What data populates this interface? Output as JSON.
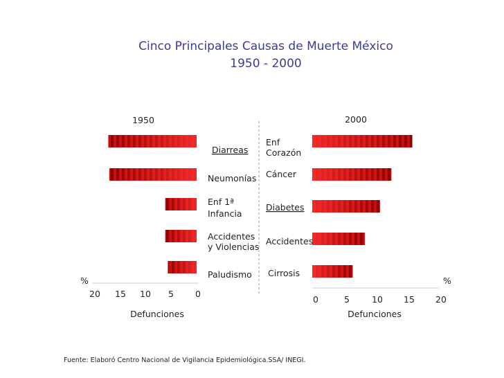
{
  "title_line1": "Cinco Principales Causas de Muerte México",
  "title_line2": "1950 - 2000",
  "source": "Fuente: Elaboró Centro Nacional de Vigilancia Epidemiológica.SSA/ INEGI.",
  "colors": {
    "title": "#3b3b9a",
    "bar_dark": "#8c0000",
    "bar_light": "#ff2a2a",
    "divider": "#6abf5a"
  },
  "chart_data": [
    {
      "type": "bar",
      "title": "1950",
      "orientation": "horizontal",
      "direction": "right-to-left",
      "xlabel": "Defunciones",
      "unit_label": "%",
      "xlim": [
        20,
        0
      ],
      "ticks": [
        "20",
        "15",
        "10",
        "5",
        "0"
      ],
      "categories": [
        {
          "lines": [
            "Diarreas"
          ],
          "underline": true
        },
        {
          "lines": [
            "Neumonías"
          ],
          "underline": false
        },
        {
          "lines": [
            "Enf 1ª",
            "Infancia"
          ],
          "underline": false
        },
        {
          "lines": [
            "Accidentes",
            "y Violencias"
          ],
          "underline": false
        },
        {
          "lines": [
            "Paludismo"
          ],
          "underline": false
        }
      ],
      "values": [
        16.9,
        16.7,
        6.0,
        6.0,
        5.5
      ]
    },
    {
      "type": "bar",
      "title": "2000",
      "orientation": "horizontal",
      "direction": "left-to-right",
      "xlabel": "Defunciones",
      "unit_label": "%",
      "xlim": [
        0,
        20
      ],
      "ticks": [
        "0",
        "5",
        "10",
        "15",
        "20"
      ],
      "categories": [
        {
          "lines": [
            "Enf",
            "Corazón"
          ],
          "underline": false
        },
        {
          "lines": [
            "Cáncer"
          ],
          "underline": false
        },
        {
          "lines": [
            "Diabetes"
          ],
          "underline": true
        },
        {
          "lines": [
            "Accidentes"
          ],
          "underline": false
        },
        {
          "lines": [
            "Cirrosis"
          ],
          "underline": false
        }
      ],
      "values": [
        15.8,
        12.5,
        10.7,
        8.3,
        6.4
      ]
    }
  ]
}
